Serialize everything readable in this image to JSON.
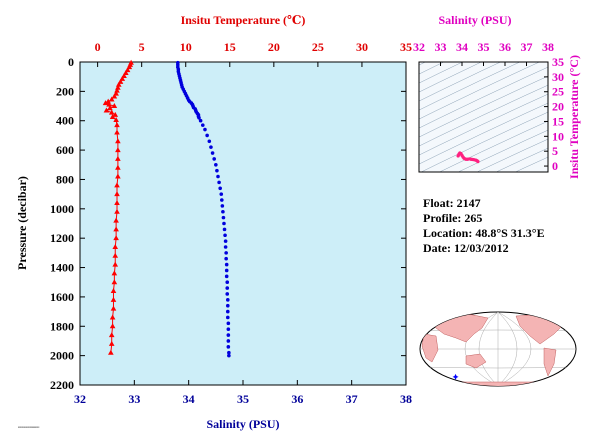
{
  "chart_data": [
    {
      "type": "scatter",
      "title": "",
      "y_axis": {
        "label": "Pressure (decibar)",
        "range": [
          0,
          2200
        ],
        "inverted": true,
        "ticks": [
          "0",
          "200",
          "400",
          "600",
          "800",
          "1000",
          "1200",
          "1400",
          "1600",
          "1800",
          "2000",
          "2200"
        ]
      },
      "top_axis": {
        "label": "Insitu Temperature (℃)",
        "range": [
          -2,
          35
        ],
        "ticks": [
          "0",
          "5",
          "10",
          "15",
          "20",
          "25",
          "30",
          "35"
        ]
      },
      "bottom_axis": {
        "label": "Salinity (PSU)",
        "range": [
          32,
          38
        ],
        "ticks": [
          "32",
          "33",
          "34",
          "35",
          "36",
          "37",
          "38"
        ]
      },
      "plot_background": "#cdeef8",
      "series": [
        {
          "name": "",
          "variable": "temperature",
          "marker": "triangle",
          "color": "#ff0000",
          "points": [
            {
              "t": 3.8,
              "p": 5
            },
            {
              "t": 3.7,
              "p": 20
            },
            {
              "t": 3.6,
              "p": 35
            },
            {
              "t": 3.4,
              "p": 55
            },
            {
              "t": 3.2,
              "p": 75
            },
            {
              "t": 3.0,
              "p": 95
            },
            {
              "t": 2.8,
              "p": 115
            },
            {
              "t": 2.6,
              "p": 135
            },
            {
              "t": 2.4,
              "p": 155
            },
            {
              "t": 2.3,
              "p": 175
            },
            {
              "t": 2.2,
              "p": 195
            },
            {
              "t": 2.1,
              "p": 215
            },
            {
              "t": 1.9,
              "p": 235
            },
            {
              "t": 1.6,
              "p": 255
            },
            {
              "t": 1.2,
              "p": 270
            },
            {
              "t": 0.9,
              "p": 280
            },
            {
              "t": 1.3,
              "p": 290
            },
            {
              "t": 1.9,
              "p": 300
            },
            {
              "t": 1.4,
              "p": 315
            },
            {
              "t": 1.0,
              "p": 330
            },
            {
              "t": 1.6,
              "p": 345
            },
            {
              "t": 2.0,
              "p": 360
            },
            {
              "t": 1.7,
              "p": 375
            },
            {
              "t": 2.1,
              "p": 395
            },
            {
              "t": 2.2,
              "p": 430
            },
            {
              "t": 2.2,
              "p": 480
            },
            {
              "t": 2.3,
              "p": 540
            },
            {
              "t": 2.3,
              "p": 600
            },
            {
              "t": 2.3,
              "p": 660
            },
            {
              "t": 2.3,
              "p": 720
            },
            {
              "t": 2.3,
              "p": 780
            },
            {
              "t": 2.2,
              "p": 840
            },
            {
              "t": 2.2,
              "p": 900
            },
            {
              "t": 2.2,
              "p": 960
            },
            {
              "t": 2.2,
              "p": 1020
            },
            {
              "t": 2.1,
              "p": 1080
            },
            {
              "t": 2.1,
              "p": 1140
            },
            {
              "t": 2.1,
              "p": 1200
            },
            {
              "t": 2.0,
              "p": 1260
            },
            {
              "t": 2.0,
              "p": 1320
            },
            {
              "t": 2.0,
              "p": 1380
            },
            {
              "t": 1.9,
              "p": 1440
            },
            {
              "t": 1.9,
              "p": 1500
            },
            {
              "t": 1.8,
              "p": 1560
            },
            {
              "t": 1.8,
              "p": 1620
            },
            {
              "t": 1.8,
              "p": 1680
            },
            {
              "t": 1.7,
              "p": 1740
            },
            {
              "t": 1.7,
              "p": 1800
            },
            {
              "t": 1.6,
              "p": 1860
            },
            {
              "t": 1.6,
              "p": 1920
            },
            {
              "t": 1.5,
              "p": 1980
            }
          ]
        },
        {
          "name": "",
          "variable": "salinity",
          "marker": "dot",
          "color": "#0000dd",
          "points": [
            {
              "s": 33.8,
              "p": 5
            },
            {
              "s": 33.8,
              "p": 20
            },
            {
              "s": 33.8,
              "p": 35
            },
            {
              "s": 33.81,
              "p": 50
            },
            {
              "s": 33.81,
              "p": 65
            },
            {
              "s": 33.82,
              "p": 80
            },
            {
              "s": 33.83,
              "p": 95
            },
            {
              "s": 33.84,
              "p": 110
            },
            {
              "s": 33.85,
              "p": 125
            },
            {
              "s": 33.86,
              "p": 140
            },
            {
              "s": 33.87,
              "p": 155
            },
            {
              "s": 33.88,
              "p": 170
            },
            {
              "s": 33.9,
              "p": 185
            },
            {
              "s": 33.92,
              "p": 200
            },
            {
              "s": 33.94,
              "p": 215
            },
            {
              "s": 33.96,
              "p": 230
            },
            {
              "s": 33.98,
              "p": 245
            },
            {
              "s": 34.0,
              "p": 260
            },
            {
              "s": 34.02,
              "p": 270
            },
            {
              "s": 34.05,
              "p": 280
            },
            {
              "s": 34.07,
              "p": 290
            },
            {
              "s": 34.08,
              "p": 300
            },
            {
              "s": 34.09,
              "p": 310
            },
            {
              "s": 34.12,
              "p": 320
            },
            {
              "s": 34.13,
              "p": 330
            },
            {
              "s": 34.14,
              "p": 340
            },
            {
              "s": 34.16,
              "p": 350
            },
            {
              "s": 34.18,
              "p": 360
            },
            {
              "s": 34.18,
              "p": 370
            },
            {
              "s": 34.19,
              "p": 380
            },
            {
              "s": 34.22,
              "p": 400
            },
            {
              "s": 34.26,
              "p": 430
            },
            {
              "s": 34.3,
              "p": 460
            },
            {
              "s": 34.34,
              "p": 500
            },
            {
              "s": 34.38,
              "p": 540
            },
            {
              "s": 34.41,
              "p": 580
            },
            {
              "s": 34.44,
              "p": 620
            },
            {
              "s": 34.47,
              "p": 660
            },
            {
              "s": 34.5,
              "p": 700
            },
            {
              "s": 34.52,
              "p": 740
            },
            {
              "s": 34.54,
              "p": 780
            },
            {
              "s": 34.56,
              "p": 820
            },
            {
              "s": 34.58,
              "p": 860
            },
            {
              "s": 34.6,
              "p": 900
            },
            {
              "s": 34.61,
              "p": 940
            },
            {
              "s": 34.62,
              "p": 980
            },
            {
              "s": 34.63,
              "p": 1020
            },
            {
              "s": 34.64,
              "p": 1060
            },
            {
              "s": 34.65,
              "p": 1100
            },
            {
              "s": 34.66,
              "p": 1140
            },
            {
              "s": 34.67,
              "p": 1180
            },
            {
              "s": 34.68,
              "p": 1220
            },
            {
              "s": 34.68,
              "p": 1260
            },
            {
              "s": 34.69,
              "p": 1300
            },
            {
              "s": 34.69,
              "p": 1340
            },
            {
              "s": 34.7,
              "p": 1380
            },
            {
              "s": 34.7,
              "p": 1420
            },
            {
              "s": 34.7,
              "p": 1460
            },
            {
              "s": 34.71,
              "p": 1500
            },
            {
              "s": 34.71,
              "p": 1540
            },
            {
              "s": 34.71,
              "p": 1580
            },
            {
              "s": 34.72,
              "p": 1620
            },
            {
              "s": 34.72,
              "p": 1660
            },
            {
              "s": 34.72,
              "p": 1700
            },
            {
              "s": 34.72,
              "p": 1740
            },
            {
              "s": 34.73,
              "p": 1780
            },
            {
              "s": 34.73,
              "p": 1820
            },
            {
              "s": 34.73,
              "p": 1860
            },
            {
              "s": 34.73,
              "p": 1900
            },
            {
              "s": 34.73,
              "p": 1940
            },
            {
              "s": 34.74,
              "p": 1980
            },
            {
              "s": 34.74,
              "p": 2000
            }
          ]
        }
      ]
    },
    {
      "type": "scatter",
      "title": "",
      "x_axis": {
        "label": "Salinity (PSU)",
        "position": "top",
        "range": [
          32,
          38
        ],
        "ticks": [
          "32",
          "33",
          "34",
          "35",
          "36",
          "37",
          "38"
        ]
      },
      "y_axis": {
        "label": "Insitu Temperature (°C)",
        "position": "right",
        "range": [
          -2,
          35
        ],
        "ticks": [
          "0",
          "5",
          "10",
          "15",
          "20",
          "25",
          "30",
          "35"
        ]
      },
      "label_color": "#e000c0",
      "series": [
        {
          "name": "",
          "color": "#ff2080",
          "points": [
            {
              "s": 33.82,
              "t": 3.4
            },
            {
              "s": 33.86,
              "t": 4.0
            },
            {
              "s": 33.9,
              "t": 4.4
            },
            {
              "s": 33.95,
              "t": 4.2
            },
            {
              "s": 34.0,
              "t": 3.6
            },
            {
              "s": 34.05,
              "t": 3.0
            },
            {
              "s": 34.1,
              "t": 2.6
            },
            {
              "s": 34.18,
              "t": 2.3
            },
            {
              "s": 34.26,
              "t": 2.3
            },
            {
              "s": 34.34,
              "t": 2.4
            },
            {
              "s": 34.42,
              "t": 2.3
            },
            {
              "s": 34.5,
              "t": 2.2
            },
            {
              "s": 34.58,
              "t": 2.1
            },
            {
              "s": 34.64,
              "t": 2.0
            },
            {
              "s": 34.7,
              "t": 1.8
            },
            {
              "s": 34.74,
              "t": 1.5
            }
          ]
        }
      ]
    }
  ],
  "info": {
    "float": "Float:  2147",
    "profile": "Profile:  265",
    "location": "Location:  48.8°S  31.3°E",
    "date": "Date:  12/03/2012"
  },
  "map": {
    "marker_latitude": -48.8,
    "marker_longitude": 31.3,
    "marker_color": "#0000ff"
  },
  "colors": {
    "temperature_axis": "#e00000",
    "salinity_axis": "#000099",
    "pressure_axis": "#000000",
    "ts_axis": "#e000c0"
  }
}
